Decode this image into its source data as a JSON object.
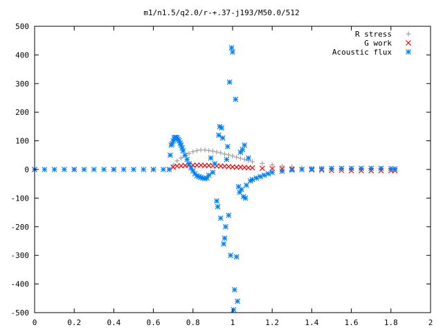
{
  "colors": {
    "r_stress": "#a0a0a0",
    "g_work": "#ff0000",
    "acoustic_flux": "#0080ff",
    "axis": "#000000"
  },
  "chart_data": {
    "type": "scatter",
    "title": "m1/n1.5/q2.0/r-+.37-j193/M50.0/512",
    "xlabel": "",
    "ylabel": "",
    "xlim": [
      0,
      2
    ],
    "ylim": [
      -500,
      500
    ],
    "xticks": [
      "0",
      "0.2",
      "0.4",
      "0.6",
      "0.8",
      "1",
      "1.2",
      "1.4",
      "1.6",
      "1.8",
      "2"
    ],
    "yticks": [
      "500",
      "400",
      "300",
      "200",
      "100",
      "0",
      "-100",
      "-200",
      "-300",
      "-400",
      "-500"
    ],
    "grid": false,
    "legend_position": "top-right",
    "series": [
      {
        "name": "R stress",
        "marker": "+",
        "color": "#a0a0a0",
        "x": [
          0,
          0.2,
          0.4,
          0.6,
          0.68,
          0.7,
          0.72,
          0.74,
          0.76,
          0.78,
          0.8,
          0.82,
          0.84,
          0.86,
          0.88,
          0.9,
          0.92,
          0.94,
          0.96,
          0.98,
          1.0,
          1.02,
          1.04,
          1.06,
          1.08,
          1.1,
          1.15,
          1.2,
          1.25,
          1.3,
          1.35,
          1.4,
          1.45,
          1.5,
          1.55,
          1.6,
          1.65,
          1.7,
          1.75,
          1.8,
          1.82
        ],
        "y": [
          0,
          0,
          0,
          0,
          0,
          15,
          30,
          40,
          48,
          56,
          62,
          66,
          68,
          68,
          66,
          64,
          61,
          58,
          54,
          51,
          47,
          43,
          39,
          35,
          31,
          27,
          21,
          16,
          12,
          9,
          6,
          4,
          3,
          2,
          2,
          1,
          1,
          1,
          1,
          1,
          1
        ]
      },
      {
        "name": "G work",
        "marker": "x",
        "color": "#ff0000",
        "x": [
          0,
          0.2,
          0.4,
          0.6,
          0.68,
          0.7,
          0.72,
          0.74,
          0.76,
          0.78,
          0.8,
          0.82,
          0.84,
          0.86,
          0.88,
          0.9,
          0.92,
          0.94,
          0.96,
          0.98,
          1.0,
          1.02,
          1.04,
          1.06,
          1.08,
          1.1,
          1.15,
          1.2,
          1.25,
          1.3,
          1.35,
          1.4,
          1.45,
          1.5,
          1.55,
          1.6,
          1.65,
          1.7,
          1.75,
          1.8,
          1.82
        ],
        "y": [
          0,
          0,
          0,
          0,
          0,
          8,
          12,
          13,
          14,
          15,
          15,
          15,
          15,
          14,
          14,
          13,
          12,
          12,
          11,
          10,
          9,
          8,
          8,
          7,
          6,
          6,
          4,
          3,
          2,
          1,
          0,
          -1,
          -2,
          -3,
          -3,
          -4,
          -4,
          -4,
          -4,
          -4,
          -4
        ]
      },
      {
        "name": "Acoustic flux",
        "marker": "*",
        "color": "#0080ff",
        "x": [
          0,
          0.05,
          0.1,
          0.15,
          0.2,
          0.25,
          0.3,
          0.35,
          0.4,
          0.45,
          0.5,
          0.55,
          0.6,
          0.65,
          0.68,
          0.685,
          0.69,
          0.695,
          0.7,
          0.705,
          0.71,
          0.715,
          0.72,
          0.725,
          0.73,
          0.735,
          0.74,
          0.745,
          0.75,
          0.76,
          0.77,
          0.78,
          0.79,
          0.8,
          0.81,
          0.82,
          0.83,
          0.84,
          0.85,
          0.86,
          0.87,
          0.88,
          0.89,
          0.9,
          0.91,
          0.92,
          0.925,
          0.93,
          0.935,
          0.94,
          0.945,
          0.95,
          0.955,
          0.96,
          0.965,
          0.97,
          0.975,
          0.98,
          0.985,
          0.99,
          0.995,
          1.0,
          1.005,
          1.01,
          1.015,
          1.02,
          1.025,
          1.03,
          1.035,
          1.04,
          1.045,
          1.05,
          1.055,
          1.06,
          1.065,
          1.07,
          1.08,
          1.09,
          1.1,
          1.12,
          1.14,
          1.16,
          1.18,
          1.2,
          1.25,
          1.3,
          1.35,
          1.4,
          1.45,
          1.5,
          1.55,
          1.6,
          1.65,
          1.7,
          1.75,
          1.8,
          1.82
        ],
        "y": [
          0,
          0,
          0,
          0,
          0,
          0,
          0,
          0,
          0,
          0,
          0,
          0,
          0,
          0,
          0,
          50,
          85,
          90,
          100,
          110,
          112,
          112,
          110,
          105,
          100,
          92,
          85,
          75,
          65,
          50,
          35,
          20,
          5,
          -5,
          -15,
          -22,
          -25,
          -28,
          -30,
          -32,
          -30,
          -20,
          40,
          -10,
          20,
          -110,
          -130,
          120,
          150,
          -170,
          145,
          110,
          -260,
          -240,
          -200,
          35,
          80,
          -160,
          305,
          -300,
          425,
          410,
          -490,
          -420,
          245,
          -305,
          -460,
          -60,
          -80,
          60,
          -70,
          70,
          -95,
          85,
          -100,
          -55,
          40,
          -40,
          -35,
          -30,
          -25,
          -20,
          -15,
          -10,
          -6,
          -2,
          0,
          2,
          3,
          4,
          4,
          4,
          4,
          4,
          4,
          3,
          2
        ]
      }
    ]
  }
}
